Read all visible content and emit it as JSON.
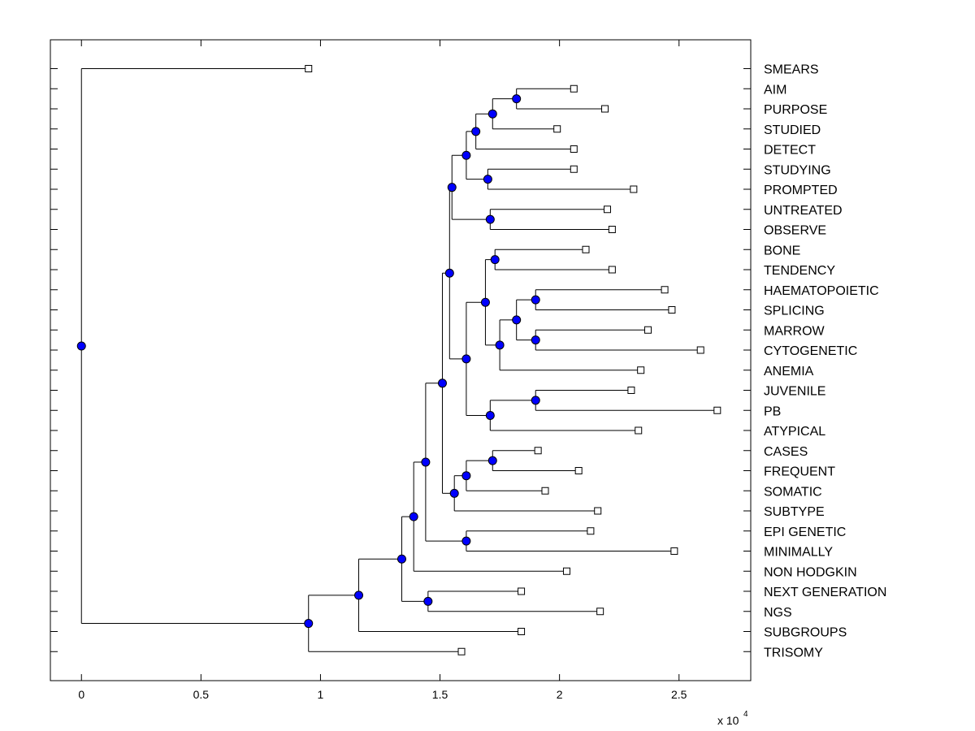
{
  "chart_data": {
    "type": "dendrogram",
    "orientation": "horizontal",
    "title": "",
    "xlabel": "",
    "ylabel": "",
    "x_exponent_label": "x 10",
    "x_exponent_power": "4",
    "xlim": [
      -0.13,
      2.8
    ],
    "xticks": [
      0,
      0.5,
      1,
      1.5,
      2,
      2.5
    ],
    "xtick_labels": [
      "0",
      "0.5",
      "1",
      "1.5",
      "2",
      "2.5"
    ],
    "grid": false,
    "node_marker_color": "#0000ff",
    "leaf_marker_color": "#ffffff",
    "leaves": [
      {
        "label": "SMEARS",
        "x": 0.95
      },
      {
        "label": "AIM",
        "x": 2.06
      },
      {
        "label": "PURPOSE",
        "x": 2.19
      },
      {
        "label": "STUDIED",
        "x": 1.99
      },
      {
        "label": "DETECT",
        "x": 2.06
      },
      {
        "label": "STUDYING",
        "x": 2.06
      },
      {
        "label": "PROMPTED",
        "x": 2.31
      },
      {
        "label": "UNTREATED",
        "x": 2.2
      },
      {
        "label": "OBSERVE",
        "x": 2.22
      },
      {
        "label": "BONE",
        "x": 2.11
      },
      {
        "label": "TENDENCY",
        "x": 2.22
      },
      {
        "label": "HAEMATOPOIETIC",
        "x": 2.44
      },
      {
        "label": "SPLICING",
        "x": 2.47
      },
      {
        "label": "MARROW",
        "x": 2.37
      },
      {
        "label": "CYTOGENETIC",
        "x": 2.59
      },
      {
        "label": "ANEMIA",
        "x": 2.34
      },
      {
        "label": "JUVENILE",
        "x": 2.3
      },
      {
        "label": "PB",
        "x": 2.66
      },
      {
        "label": "ATYPICAL",
        "x": 2.33
      },
      {
        "label": "CASES",
        "x": 1.91
      },
      {
        "label": "FREQUENT",
        "x": 2.08
      },
      {
        "label": "SOMATIC",
        "x": 1.94
      },
      {
        "label": "SUBTYPE",
        "x": 2.16
      },
      {
        "label": "EPI GENETIC",
        "x": 2.13
      },
      {
        "label": "MINIMALLY",
        "x": 2.48
      },
      {
        "label": "NON HODGKIN",
        "x": 2.03
      },
      {
        "label": "NEXT GENERATION",
        "x": 1.84
      },
      {
        "label": "NGS",
        "x": 2.17
      },
      {
        "label": "SUBGROUPS",
        "x": 1.84
      },
      {
        "label": "TRISOMY",
        "x": 1.59
      }
    ],
    "internal_nodes": [
      {
        "x": 1.82,
        "children": [
          1,
          2
        ]
      },
      {
        "x": 1.72,
        "children": [
          "n0",
          3
        ]
      },
      {
        "x": 1.65,
        "children": [
          "n1",
          4
        ]
      },
      {
        "x": 1.7,
        "children": [
          5,
          6
        ]
      },
      {
        "x": 1.61,
        "children": [
          "n2",
          "n3"
        ]
      },
      {
        "x": 1.71,
        "children": [
          7,
          8
        ]
      },
      {
        "x": 1.55,
        "children": [
          "n4",
          "n5"
        ]
      },
      {
        "x": 1.73,
        "children": [
          9,
          10
        ]
      },
      {
        "x": 1.9,
        "children": [
          11,
          12
        ]
      },
      {
        "x": 1.9,
        "children": [
          13,
          14
        ]
      },
      {
        "x": 1.82,
        "children": [
          "n8",
          "n9"
        ]
      },
      {
        "x": 1.75,
        "children": [
          "n10",
          15
        ]
      },
      {
        "x": 1.69,
        "children": [
          "n7",
          "n11"
        ]
      },
      {
        "x": 1.9,
        "children": [
          16,
          17
        ]
      },
      {
        "x": 1.71,
        "children": [
          "n13",
          18
        ]
      },
      {
        "x": 1.61,
        "children": [
          "n12",
          "n14"
        ]
      },
      {
        "x": 1.54,
        "children": [
          "n6",
          "n15"
        ]
      },
      {
        "x": 1.72,
        "children": [
          19,
          20
        ]
      },
      {
        "x": 1.61,
        "children": [
          "n17",
          21
        ]
      },
      {
        "x": 1.56,
        "children": [
          "n18",
          22
        ]
      },
      {
        "x": 1.51,
        "children": [
          "n16",
          "n19"
        ]
      },
      {
        "x": 1.61,
        "children": [
          23,
          24
        ]
      },
      {
        "x": 1.44,
        "children": [
          "n20",
          "n21"
        ]
      },
      {
        "x": 1.39,
        "children": [
          "n22",
          25
        ]
      },
      {
        "x": 1.45,
        "children": [
          26,
          27
        ]
      },
      {
        "x": 1.34,
        "children": [
          "n23",
          "n24"
        ]
      },
      {
        "x": 1.16,
        "children": [
          "n25",
          28
        ]
      },
      {
        "x": 0.95,
        "children": [
          "n26",
          29
        ]
      },
      {
        "x": 0.0,
        "children": [
          0,
          "n27"
        ]
      }
    ]
  }
}
